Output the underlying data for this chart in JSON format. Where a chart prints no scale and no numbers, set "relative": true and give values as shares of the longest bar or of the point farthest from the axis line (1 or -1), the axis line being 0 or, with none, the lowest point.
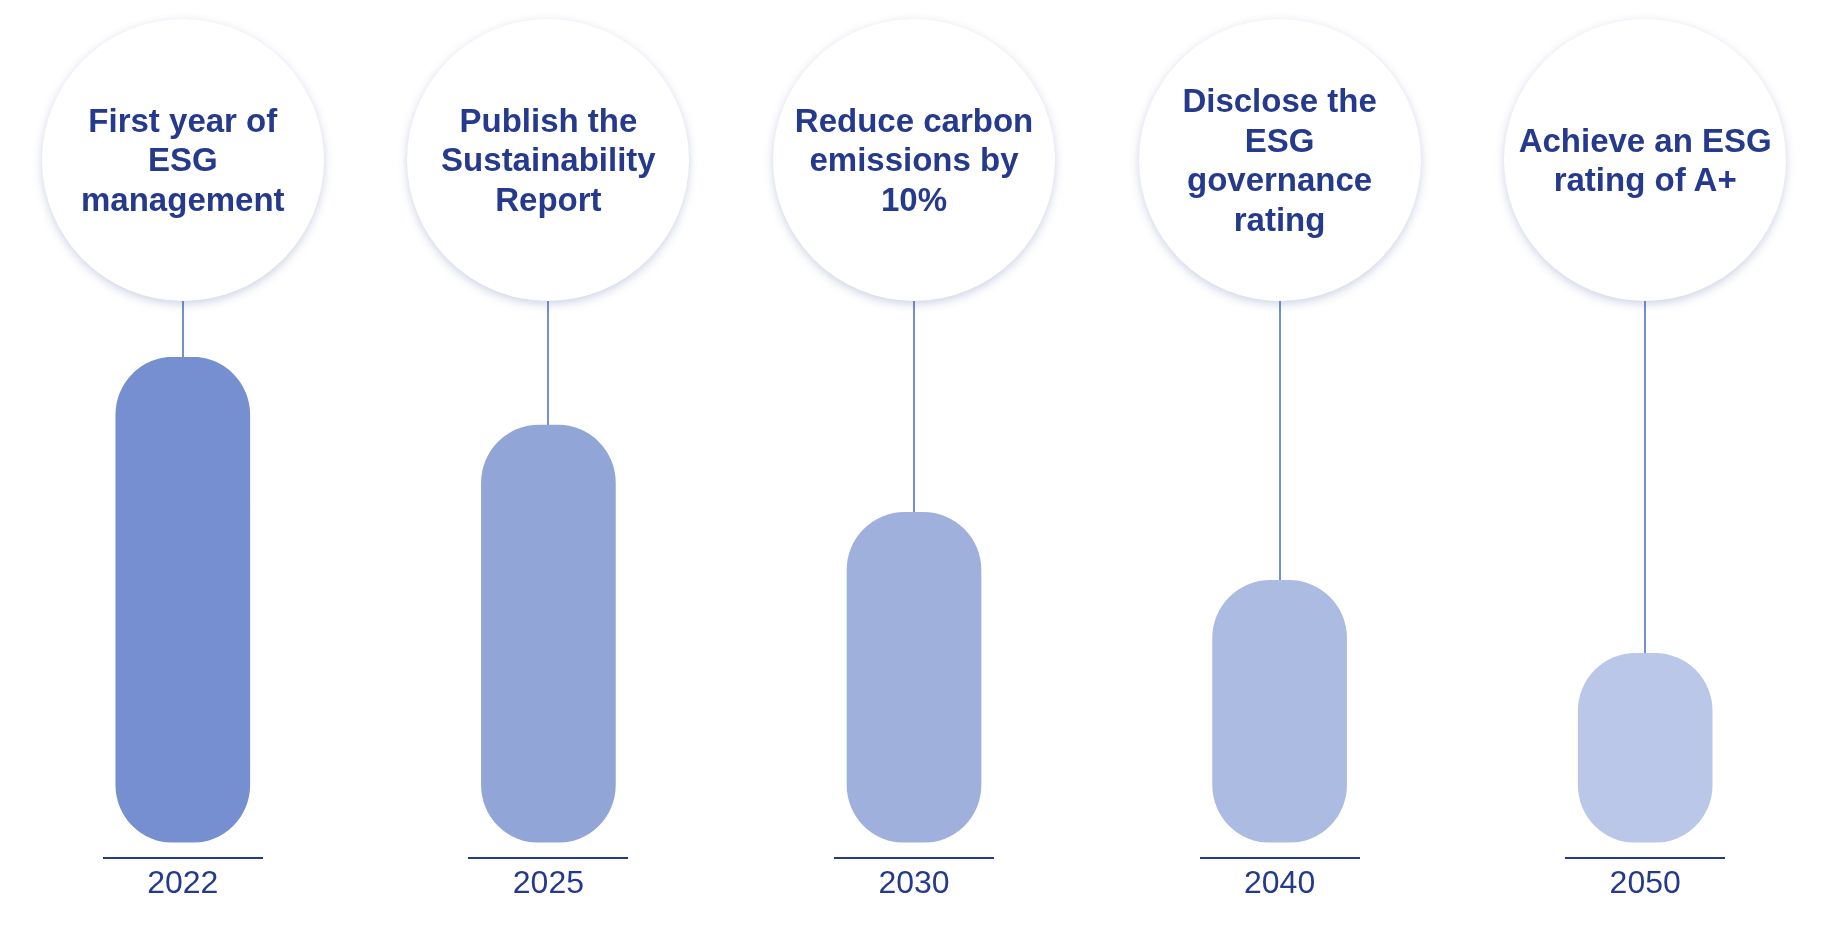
{
  "chart_data": {
    "type": "bar",
    "relative": true,
    "categories": [
      "2022",
      "2025",
      "2030",
      "2040",
      "2050"
    ],
    "values": [
      1,
      0.86,
      0.68,
      0.54,
      0.39
    ],
    "colors": [
      "#758fd0",
      "#91a5d6",
      "#9fb0dd",
      "#abbbe2",
      "#bac7e8"
    ],
    "grid": false,
    "legend": false,
    "annotations": [
      "First year of ESG management",
      "Publish the Sustainability Report",
      "Reduce carbon emissions by 10%",
      "Disclose the ESG governance rating",
      "Achieve an ESG rating of A+"
    ]
  }
}
